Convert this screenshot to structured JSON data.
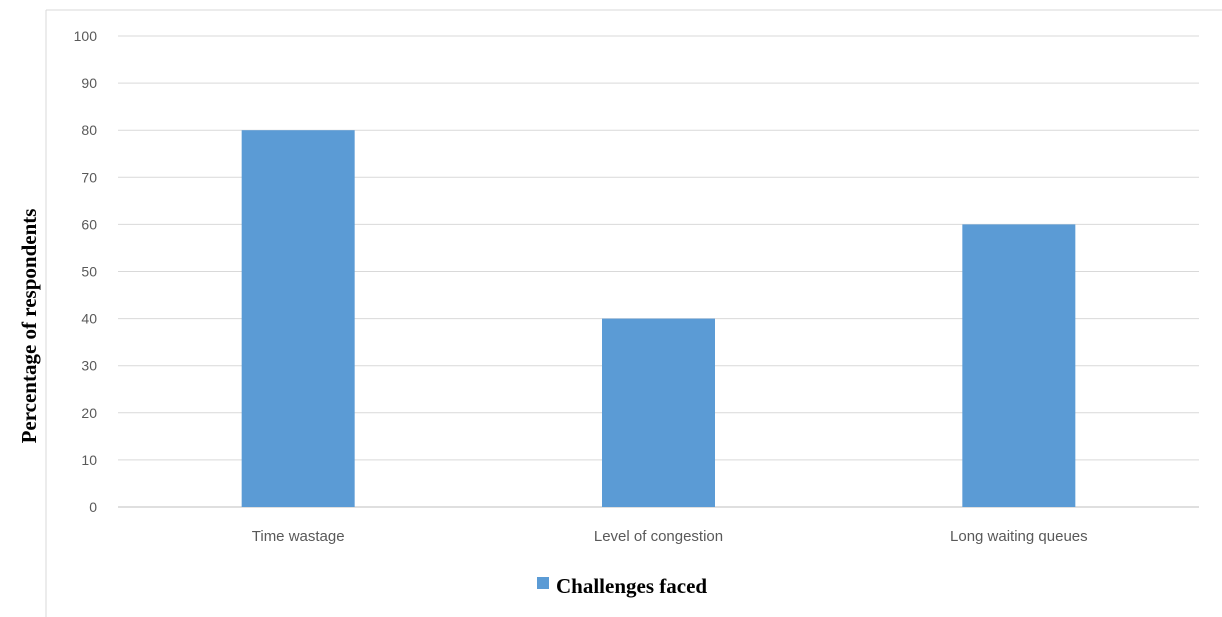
{
  "chart_data": {
    "type": "bar",
    "categories": [
      "Time wastage",
      "Level of congestion",
      "Long waiting queues"
    ],
    "series": [
      {
        "name": "Challenges faced",
        "values": [
          80,
          40,
          60
        ]
      }
    ],
    "title": "",
    "xlabel": "",
    "ylabel": "Percentage of respondents",
    "ylim": [
      0,
      100
    ],
    "yticks": [
      0,
      10,
      20,
      30,
      40,
      50,
      60,
      70,
      80,
      90,
      100
    ],
    "grid": true,
    "legend": "bottom",
    "colors": {
      "bar": "#5B9BD5",
      "grid": "#D9D9D9",
      "axis": "#BFBFBF",
      "border": "#D9D9D9"
    }
  }
}
